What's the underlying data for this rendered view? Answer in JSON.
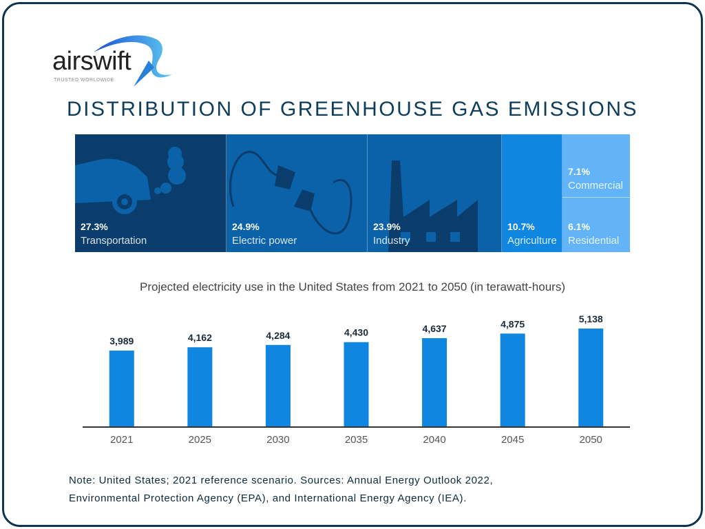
{
  "logo": {
    "word": "airswift",
    "tagline": "TRUSTED WORLDWIDE"
  },
  "title": "DISTRIBUTION OF GREENHOUSE GAS EMISSIONS",
  "emissions": [
    {
      "label": "Transportation",
      "percent": "27.3%",
      "color": "#0a3d6b",
      "icon": "car-exhaust-icon"
    },
    {
      "label": "Electric power",
      "percent": "24.9%",
      "color": "#0b62a8",
      "icon": "plug-icon"
    },
    {
      "label": "Industry",
      "percent": "23.9%",
      "color": "#0b62a8",
      "icon": "factory-icon"
    },
    {
      "label": "Agriculture",
      "percent": "10.7%",
      "color": "#0f86e0"
    },
    {
      "label": "Commercial",
      "percent": "7.1%",
      "color": "#62b4f7"
    },
    {
      "label": "Residential",
      "percent": "6.1%",
      "color": "#62b4f7"
    }
  ],
  "chart_data": {
    "type": "bar",
    "title": "Projected electricity use in the United States from 2021 to 2050 (in terawatt-hours)",
    "categories": [
      "2021",
      "2025",
      "2030",
      "2035",
      "2040",
      "2045",
      "2050"
    ],
    "values": [
      3989,
      4162,
      4284,
      4430,
      4637,
      4875,
      5138
    ],
    "data_labels": [
      "3,989",
      "4,162",
      "4,284",
      "4,430",
      "4,637",
      "4,875",
      "5,138"
    ],
    "ylim": [
      0,
      5138
    ],
    "grid": false,
    "bar_color": "#0f86e0"
  },
  "note": {
    "line1": "Note: United States; 2021 reference scenario. Sources: Annual Energy Outlook 2022,",
    "line2": "Environmental Protection Agency (EPA), and International Energy Agency (IEA)."
  }
}
